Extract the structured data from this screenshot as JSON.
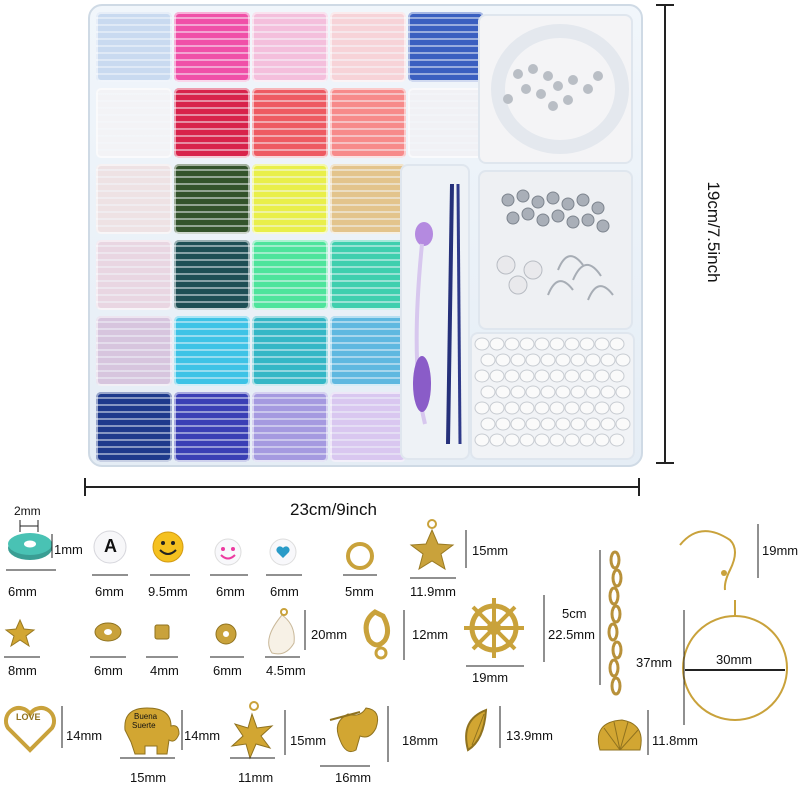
{
  "dimensions": {
    "box_width": "23cm/9inch",
    "box_height": "19cm/7.5inch"
  },
  "bead_grid_colors": [
    [
      "#c9daf0",
      "#f050a8",
      "#f4bfdc",
      "#f7d3d8",
      "#3a5fc0"
    ],
    [
      "#f3f3f6",
      "#d8234b",
      "#ee5a62",
      "#f78a8a",
      "#f1f1f5"
    ],
    [
      "#eee2e4",
      "#33532b",
      "#e9ef4a",
      "#e3c48c"
    ],
    [
      "#e9d6e2",
      "#1e4f55",
      "#4ee49c",
      "#3fcfae"
    ],
    [
      "#d7c5de",
      "#3ec3e6",
      "#35b7c6",
      "#5fb8e0"
    ],
    [
      "#1e3a8c",
      "#3a3fb5",
      "#a59ae0",
      "#d9c7f0"
    ]
  ],
  "compartments": {
    "clasps": "lobster clasps",
    "spacers": "silver spacer beads",
    "letters": "letter beads"
  },
  "specs": {
    "clay_bead_thickness": "1mm",
    "clay_bead_hole": "2mm",
    "clay_bead_width": "6mm",
    "letter_bead": "6mm",
    "smiley_bead": "9.5mm",
    "pink_smiley_bead": "6mm",
    "heart_bead": "6mm",
    "jump_ring": "5mm",
    "star_charm_w": "11.9mm",
    "star_charm_h": "15mm",
    "chain_length": "5cm",
    "ear_hook": "19mm",
    "star_bead": "8mm",
    "spacer_round": "6mm",
    "cube_bead": "4mm",
    "round_bead": "6mm",
    "shell_w": "4.5mm",
    "shell_h": "20mm",
    "lobster_clasp": "12mm",
    "wheel_w": "19mm",
    "wheel_h": "22.5mm",
    "hoop_outer": "37mm",
    "hoop_inner": "30mm",
    "love_heart": "14mm",
    "elephant_w": "15mm",
    "elephant_h": "14mm",
    "starfish_w": "11mm",
    "starfish_h": "15mm",
    "cupid_w": "16mm",
    "cupid_h": "18mm",
    "leaf": "13.9mm",
    "scallop": "11.8mm"
  },
  "charm_text": {
    "letter": "A",
    "love": "LOVE",
    "buena_1": "Buena",
    "buena_2": "Suerte"
  }
}
